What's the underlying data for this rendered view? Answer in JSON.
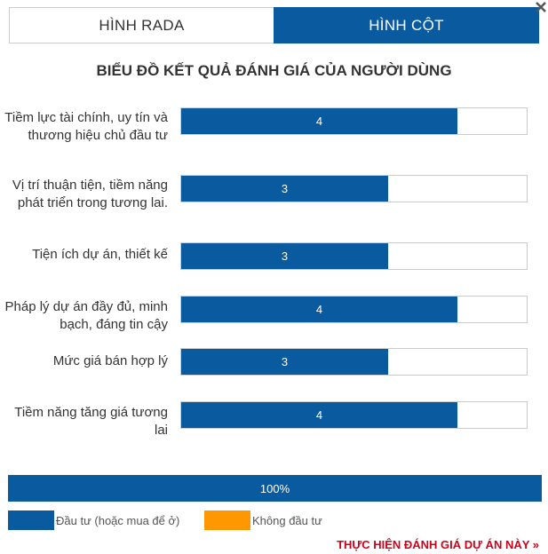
{
  "tabs": [
    {
      "label": "HÌNH RADA",
      "active": false
    },
    {
      "label": "HÌNH CỘT",
      "active": true
    }
  ],
  "chart_data": {
    "type": "bar",
    "title": "BIỂU ĐỒ KẾT QUẢ ĐÁNH GIÁ CỦA NGƯỜI DÙNG",
    "categories": [
      "Tiềm lực tài chính, uy tín và thương hiệu chủ đầu tư",
      "Vị trí thuận tiện, tiềm năng phát triển trong tương lai.",
      "Tiện ích dự án, thiết kế",
      "Pháp lý dự án đầy đủ, minh bạch, đáng tin cậy",
      "Mức giá bán hợp lý",
      "Tiềm năng tăng giá tương lai"
    ],
    "values": [
      4,
      3,
      3,
      4,
      3,
      4
    ],
    "xlim": [
      0,
      5
    ],
    "bar_color": "#0a5aa0",
    "summary": {
      "label": "100%",
      "value": 100
    }
  },
  "legend": [
    {
      "label": "Đầu tư (hoặc mua để ở)",
      "color": "#0a5aa0"
    },
    {
      "label": "Không đầu tư",
      "color": "#ff9800"
    }
  ],
  "cta_label": "THỰC HIỆN ĐÁNH GIÁ DỰ ÁN NÀY »",
  "colors": {
    "accent": "#0a5aa0",
    "cta": "#d0021b"
  }
}
